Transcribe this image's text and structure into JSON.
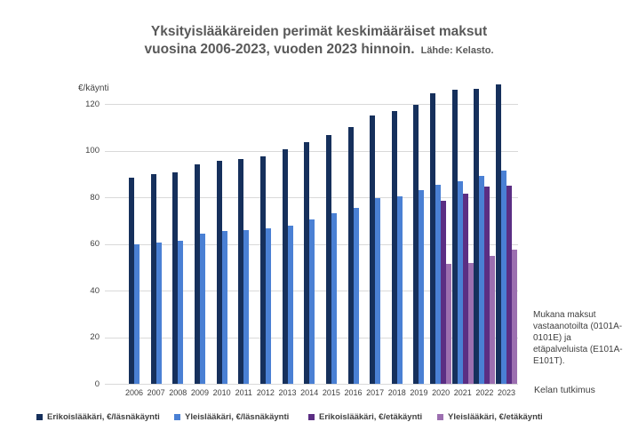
{
  "title": {
    "line1": "Yksityislääkäreiden perimät keskimääräiset maksut",
    "line2": "vuosina 2006-2023, vuoden 2023 hinnoin.",
    "source": "Lähde: Kelasto."
  },
  "annotation": "Mukana maksut vastaanotoilta (0101A-0101E) ja etäpalveluista (E101A-E101T).",
  "credit": "Kelan tutkimus",
  "chart_data": {
    "type": "bar",
    "unit_label": "€/käynti",
    "categories": [
      "2006",
      "2007",
      "2008",
      "2009",
      "2010",
      "2011",
      "2012",
      "2013",
      "2014",
      "2015",
      "2016",
      "2017",
      "2018",
      "2019",
      "2020",
      "2021",
      "2022",
      "2023"
    ],
    "series": [
      {
        "name": "Erikoislääkäri, €/läsnäkäynti",
        "color": "#16305C",
        "values": [
          88.5,
          90,
          90.5,
          94,
          95.5,
          96.5,
          97.5,
          100.5,
          103.5,
          106.5,
          110,
          115,
          117,
          119.5,
          124.5,
          126,
          126.5,
          128.5
        ]
      },
      {
        "name": "Yleislääkäri, €/läsnäkäynti",
        "color": "#4A80D4",
        "values": [
          60,
          60.5,
          61.5,
          64.5,
          65.5,
          66,
          66.5,
          68,
          70.5,
          73,
          75.5,
          79.5,
          80.5,
          83,
          85.5,
          87,
          89,
          91.5
        ]
      },
      {
        "name": "Erikoislääkäri, €/etäkäynti",
        "color": "#5B2E83",
        "values": [
          null,
          null,
          null,
          null,
          null,
          null,
          null,
          null,
          null,
          null,
          null,
          null,
          null,
          null,
          78.5,
          81.5,
          84.5,
          85
        ]
      },
      {
        "name": "Yleislääkäri, €/etäkäynti",
        "color": "#9C6FB0",
        "values": [
          null,
          null,
          null,
          null,
          null,
          null,
          null,
          null,
          null,
          null,
          null,
          null,
          null,
          null,
          51.5,
          52,
          55,
          57.5
        ]
      }
    ],
    "ylim": [
      0,
      120
    ],
    "yticks": [
      0,
      20,
      40,
      60,
      80,
      100,
      120
    ],
    "grid": true,
    "legend_position": "bottom"
  }
}
